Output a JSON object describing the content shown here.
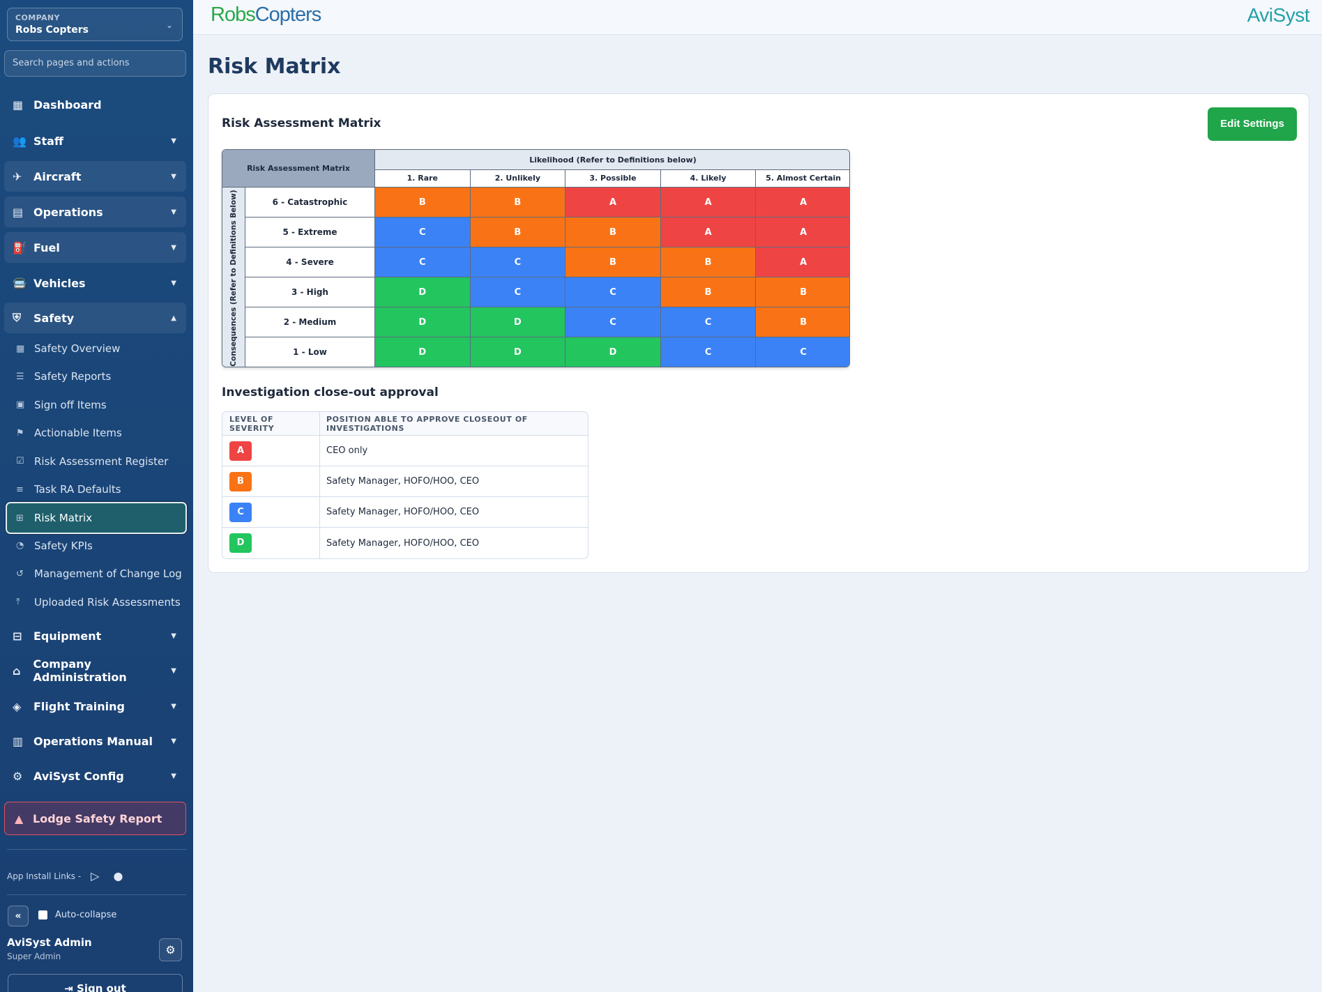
{
  "sidebar": {
    "company_label": "COMPANY",
    "company_value": "Robs Copters",
    "search_placeholder": "Search pages and actions",
    "nav": [
      {
        "label": "Dashboard",
        "icon": "dashboard-icon",
        "expanded": null
      },
      {
        "label": "Staff",
        "icon": "staff-icon",
        "expanded": false
      },
      {
        "label": "Aircraft",
        "icon": "aircraft-icon",
        "expanded": false
      },
      {
        "label": "Operations",
        "icon": "operations-icon",
        "expanded": false
      },
      {
        "label": "Fuel",
        "icon": "fuel-icon",
        "expanded": false
      },
      {
        "label": "Vehicles",
        "icon": "vehicle-icon",
        "expanded": false
      },
      {
        "label": "Safety",
        "icon": "shield-icon",
        "expanded": true
      }
    ],
    "safety_items": [
      {
        "label": "Safety Overview",
        "icon": "grid-icon"
      },
      {
        "label": "Safety Reports",
        "icon": "list-icon"
      },
      {
        "label": "Sign off Items",
        "icon": "clipboard-icon"
      },
      {
        "label": "Actionable Items",
        "icon": "flag-icon"
      },
      {
        "label": "Risk Assessment Register",
        "icon": "clipboard-check-icon"
      },
      {
        "label": "Task RA Defaults",
        "icon": "sliders-icon"
      },
      {
        "label": "Risk Matrix",
        "icon": "table-icon",
        "active": true
      },
      {
        "label": "Safety KPIs",
        "icon": "gauge-icon"
      },
      {
        "label": "Management of Change Log",
        "icon": "history-icon"
      },
      {
        "label": "Uploaded Risk Assessments",
        "icon": "upload-icon"
      }
    ],
    "nav_bottom": [
      {
        "label": "Equipment",
        "icon": "toolbox-icon"
      },
      {
        "label": "Company Administration",
        "icon": "building-icon"
      },
      {
        "label": "Flight Training",
        "icon": "graduation-cap-icon"
      },
      {
        "label": "Operations Manual",
        "icon": "book-icon"
      },
      {
        "label": "AviSyst Config",
        "icon": "gear-icon"
      }
    ],
    "lodge_label": "Lodge Safety Report",
    "install_label": "App Install Links -",
    "collapse_label": "«",
    "autocollapse_label": "Auto-collapse",
    "user_name": "AviSyst Admin",
    "user_role": "Super Admin",
    "signout_label": "Sign out"
  },
  "topbar": {
    "brand_left_a": "Robs",
    "brand_left_b": "Copters",
    "brand_right": "AviSyst"
  },
  "page_title": "Risk Matrix",
  "card": {
    "title": "Risk Assessment Matrix",
    "edit_label": "Edit Settings"
  },
  "matrix": {
    "corner": "Risk Assessment Matrix",
    "likelihood_header": "Likelihood (Refer to Definitions below)",
    "consequence_header": "Consequences (Refer to Definitions Below)",
    "columns": [
      "1. Rare",
      "2. Unlikely",
      "3. Possible",
      "4. Likely",
      "5. Almost Certain"
    ],
    "rows": [
      {
        "label": "6 - Catastrophic",
        "cells": [
          "B",
          "B",
          "A",
          "A",
          "A"
        ]
      },
      {
        "label": "5 - Extreme",
        "cells": [
          "C",
          "B",
          "B",
          "A",
          "A"
        ]
      },
      {
        "label": "4 - Severe",
        "cells": [
          "C",
          "C",
          "B",
          "B",
          "A"
        ]
      },
      {
        "label": "3 - High",
        "cells": [
          "D",
          "C",
          "C",
          "B",
          "B"
        ]
      },
      {
        "label": "2 - Medium",
        "cells": [
          "D",
          "D",
          "C",
          "C",
          "B"
        ]
      },
      {
        "label": "1 - Low",
        "cells": [
          "D",
          "D",
          "D",
          "C",
          "C"
        ]
      }
    ],
    "colors": {
      "A": "#ef4444",
      "B": "#f97316",
      "C": "#3b82f6",
      "D": "#22c55e"
    }
  },
  "approval": {
    "title": "Investigation close-out approval",
    "col1": "LEVEL OF SEVERITY",
    "col2": "POSITION ABLE TO APPROVE CLOSEOUT OF INVESTIGATIONS",
    "rows": [
      {
        "level": "A",
        "position": "CEO only"
      },
      {
        "level": "B",
        "position": "Safety Manager, HOFO/HOO, CEO"
      },
      {
        "level": "C",
        "position": "Safety Manager, HOFO/HOO, CEO"
      },
      {
        "level": "D",
        "position": "Safety Manager, HOFO/HOO, CEO"
      }
    ]
  }
}
